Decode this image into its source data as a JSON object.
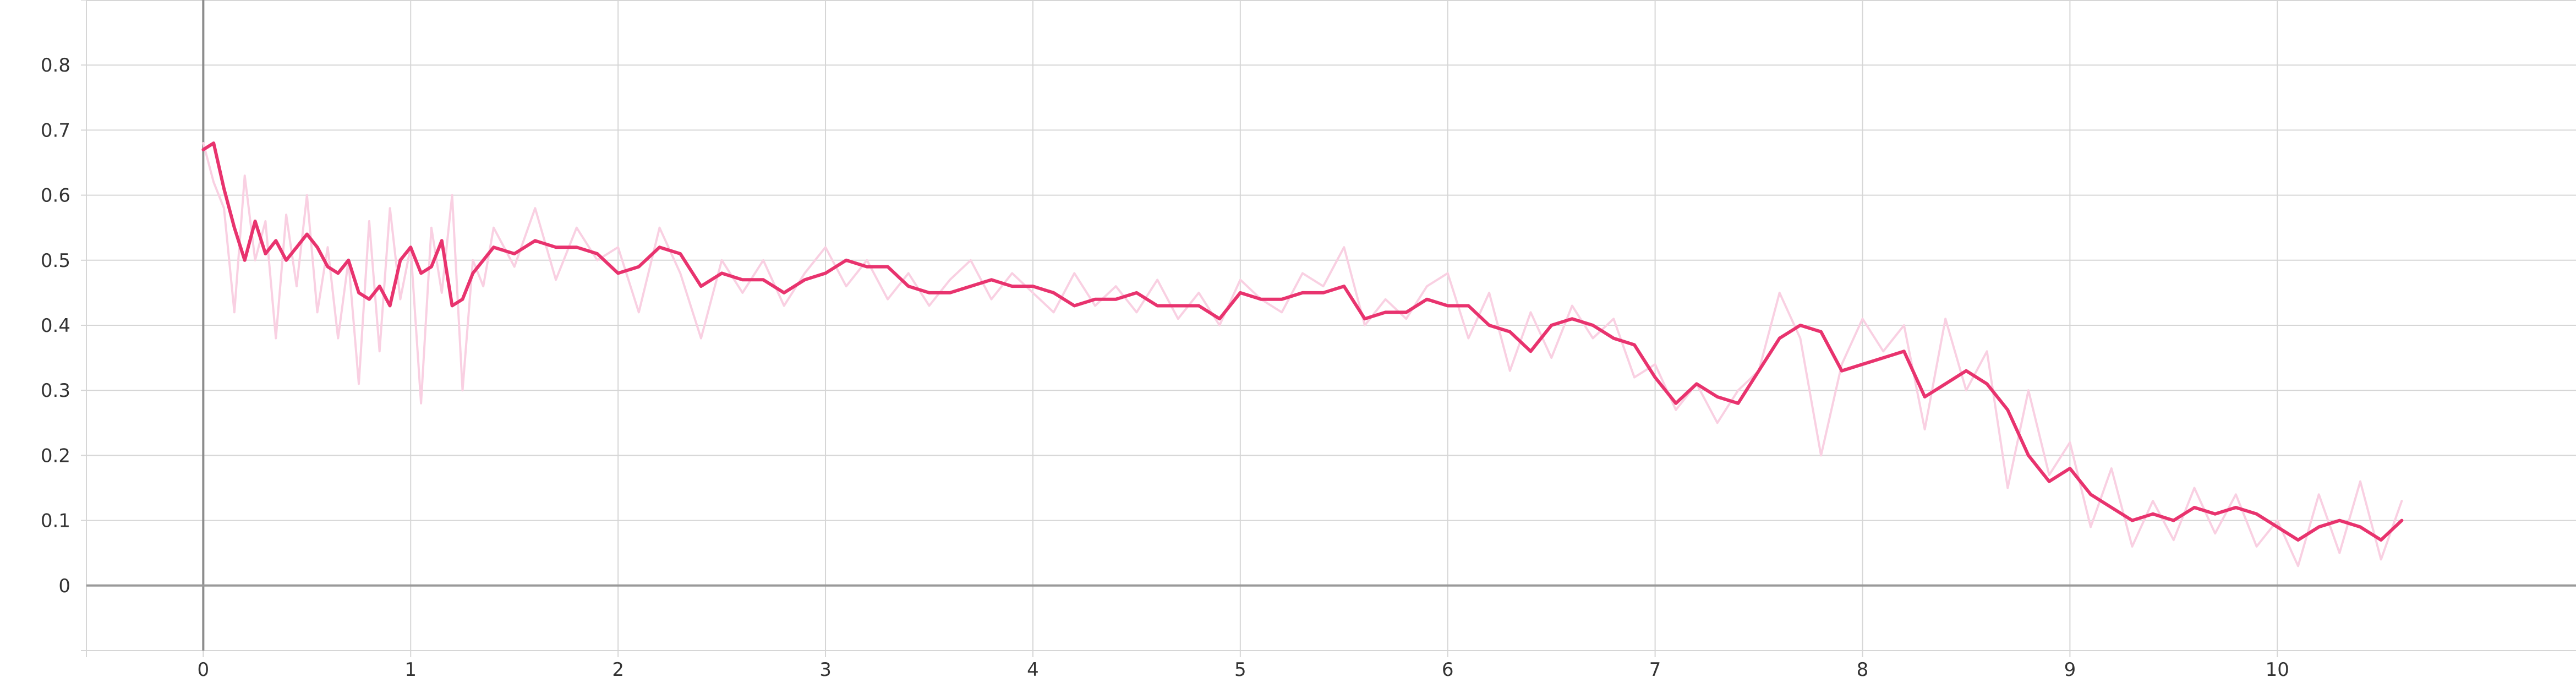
{
  "chart_data": {
    "type": "line",
    "title": "",
    "xlabel": "",
    "ylabel": "",
    "xlim": [
      -0.98,
      11.44
    ],
    "ylim": [
      -0.1,
      0.9
    ],
    "x_ticks": [
      "0",
      "1",
      "2",
      "3",
      "4",
      "5",
      "6",
      "7",
      "8",
      "9",
      "10"
    ],
    "y_ticks": [
      "0",
      "0.1",
      "0.2",
      "0.3",
      "0.4",
      "0.5",
      "0.6",
      "0.7",
      "0.8"
    ],
    "grid": true,
    "legend": "none",
    "colors": {
      "raw": "#f9d0e2",
      "smoothed": "#e8336e"
    },
    "series": [
      {
        "style": "raw",
        "x": [
          0,
          0.05,
          0.1,
          0.15,
          0.2,
          0.25,
          0.3,
          0.35,
          0.4,
          0.45,
          0.5,
          0.55,
          0.6,
          0.65,
          0.7,
          0.75,
          0.8,
          0.85,
          0.9,
          0.95,
          1.0,
          1.05,
          1.1,
          1.15,
          1.2,
          1.25,
          1.3,
          1.35,
          1.4,
          1.5,
          1.6,
          1.7,
          1.8,
          1.9,
          2.0,
          2.1,
          2.2,
          2.3,
          2.4,
          2.5,
          2.6,
          2.7,
          2.8,
          2.9,
          3.0,
          3.1,
          3.2,
          3.3,
          3.4,
          3.5,
          3.6,
          3.7,
          3.8,
          3.9,
          4.0,
          4.1,
          4.2,
          4.3,
          4.4,
          4.5,
          4.6,
          4.7,
          4.8,
          4.9,
          5.0,
          5.1,
          5.2,
          5.3,
          5.4,
          5.5,
          5.6,
          5.7,
          5.8,
          5.9,
          6.0,
          6.1,
          6.2,
          6.3,
          6.4,
          6.5,
          6.6,
          6.7,
          6.8,
          6.9,
          7.0,
          7.1,
          7.2,
          7.3,
          7.4,
          7.5,
          7.6,
          7.7,
          7.8,
          7.9,
          8.0,
          8.1,
          8.2,
          8.3,
          8.4,
          8.5,
          8.6,
          8.7,
          8.8,
          8.9,
          9.0,
          9.1,
          9.2,
          9.3,
          9.4,
          9.5,
          9.6,
          9.7,
          9.8,
          9.9,
          10.0,
          10.1,
          10.2,
          10.3,
          10.4,
          10.5,
          10.6
        ],
        "y": [
          0.68,
          0.62,
          0.58,
          0.42,
          0.63,
          0.5,
          0.56,
          0.38,
          0.57,
          0.46,
          0.6,
          0.42,
          0.52,
          0.38,
          0.5,
          0.31,
          0.56,
          0.36,
          0.58,
          0.44,
          0.52,
          0.28,
          0.55,
          0.45,
          0.6,
          0.3,
          0.5,
          0.46,
          0.55,
          0.49,
          0.58,
          0.47,
          0.55,
          0.5,
          0.52,
          0.42,
          0.55,
          0.48,
          0.38,
          0.5,
          0.45,
          0.5,
          0.43,
          0.48,
          0.52,
          0.46,
          0.5,
          0.44,
          0.48,
          0.43,
          0.47,
          0.5,
          0.44,
          0.48,
          0.45,
          0.42,
          0.48,
          0.43,
          0.46,
          0.42,
          0.47,
          0.41,
          0.45,
          0.4,
          0.47,
          0.44,
          0.42,
          0.48,
          0.46,
          0.52,
          0.4,
          0.44,
          0.41,
          0.46,
          0.48,
          0.38,
          0.45,
          0.33,
          0.42,
          0.35,
          0.43,
          0.38,
          0.41,
          0.32,
          0.34,
          0.27,
          0.31,
          0.25,
          0.3,
          0.33,
          0.45,
          0.38,
          0.2,
          0.34,
          0.41,
          0.36,
          0.4,
          0.24,
          0.41,
          0.3,
          0.36,
          0.15,
          0.3,
          0.17,
          0.22,
          0.09,
          0.18,
          0.06,
          0.13,
          0.07,
          0.15,
          0.08,
          0.14,
          0.06,
          0.1,
          0.03,
          0.14,
          0.05,
          0.16,
          0.04,
          0.13
        ]
      },
      {
        "style": "smoothed",
        "x": [
          0,
          0.05,
          0.1,
          0.15,
          0.2,
          0.25,
          0.3,
          0.35,
          0.4,
          0.45,
          0.5,
          0.55,
          0.6,
          0.65,
          0.7,
          0.75,
          0.8,
          0.85,
          0.9,
          0.95,
          1.0,
          1.05,
          1.1,
          1.15,
          1.2,
          1.25,
          1.3,
          1.35,
          1.4,
          1.5,
          1.6,
          1.7,
          1.8,
          1.9,
          2.0,
          2.1,
          2.2,
          2.3,
          2.4,
          2.5,
          2.6,
          2.7,
          2.8,
          2.9,
          3.0,
          3.1,
          3.2,
          3.3,
          3.4,
          3.5,
          3.6,
          3.7,
          3.8,
          3.9,
          4.0,
          4.1,
          4.2,
          4.3,
          4.4,
          4.5,
          4.6,
          4.7,
          4.8,
          4.9,
          5.0,
          5.1,
          5.2,
          5.3,
          5.4,
          5.5,
          5.6,
          5.7,
          5.8,
          5.9,
          6.0,
          6.1,
          6.2,
          6.3,
          6.4,
          6.5,
          6.6,
          6.7,
          6.8,
          6.9,
          7.0,
          7.1,
          7.2,
          7.3,
          7.4,
          7.5,
          7.6,
          7.7,
          7.8,
          7.9,
          8.0,
          8.1,
          8.2,
          8.3,
          8.4,
          8.5,
          8.6,
          8.7,
          8.8,
          8.9,
          9.0,
          9.1,
          9.2,
          9.3,
          9.4,
          9.5,
          9.6,
          9.7,
          9.8,
          9.9,
          10.0,
          10.1,
          10.2,
          10.3,
          10.4,
          10.5,
          10.6
        ],
        "y": [
          0.67,
          0.68,
          0.61,
          0.55,
          0.5,
          0.56,
          0.51,
          0.53,
          0.5,
          0.52,
          0.54,
          0.52,
          0.49,
          0.48,
          0.5,
          0.45,
          0.44,
          0.46,
          0.43,
          0.5,
          0.52,
          0.48,
          0.49,
          0.53,
          0.43,
          0.44,
          0.48,
          0.5,
          0.52,
          0.51,
          0.53,
          0.52,
          0.52,
          0.51,
          0.48,
          0.49,
          0.52,
          0.51,
          0.46,
          0.48,
          0.47,
          0.47,
          0.45,
          0.47,
          0.48,
          0.5,
          0.49,
          0.49,
          0.46,
          0.45,
          0.45,
          0.46,
          0.47,
          0.46,
          0.46,
          0.45,
          0.43,
          0.44,
          0.44,
          0.45,
          0.43,
          0.43,
          0.43,
          0.41,
          0.45,
          0.44,
          0.44,
          0.45,
          0.45,
          0.46,
          0.41,
          0.42,
          0.42,
          0.44,
          0.43,
          0.43,
          0.4,
          0.39,
          0.36,
          0.4,
          0.41,
          0.4,
          0.38,
          0.37,
          0.32,
          0.28,
          0.31,
          0.29,
          0.28,
          0.33,
          0.38,
          0.4,
          0.39,
          0.33,
          0.34,
          0.35,
          0.36,
          0.29,
          0.31,
          0.33,
          0.31,
          0.27,
          0.2,
          0.16,
          0.18,
          0.14,
          0.12,
          0.1,
          0.11,
          0.1,
          0.12,
          0.11,
          0.12,
          0.11,
          0.09,
          0.07,
          0.09,
          0.1,
          0.09,
          0.07,
          0.1
        ]
      }
    ]
  }
}
